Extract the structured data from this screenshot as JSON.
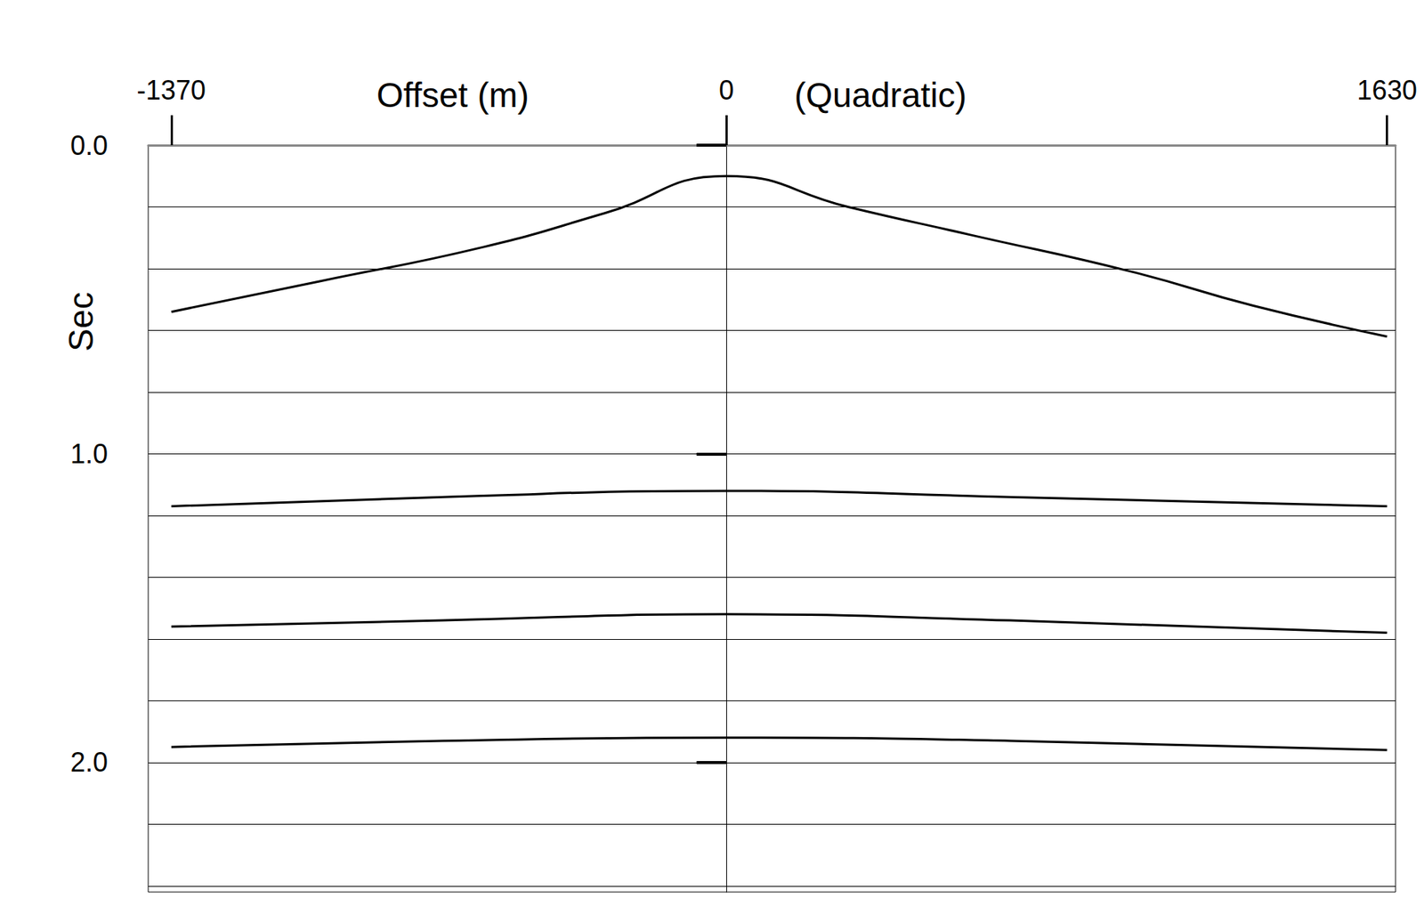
{
  "chart_data": {
    "type": "line",
    "xlabel": "Offset (m)",
    "ylabel": "Sec",
    "annotations": [
      "(Quadratic)"
    ],
    "xlim": [
      -1427,
      1651
    ],
    "xticks": [
      -1370,
      0,
      1630
    ],
    "ylim": [
      0,
      2.42
    ],
    "yticks": [
      {
        "value": 0,
        "label": "0.0"
      },
      {
        "value": 1,
        "label": "1.0"
      },
      {
        "value": 2,
        "label": "2.0"
      }
    ],
    "grid": true,
    "series": [
      {
        "color": "#000000",
        "x": [
          -1370,
          -1000,
          -600,
          -300,
          0,
          300,
          600,
          1000,
          1300,
          1630
        ],
        "values": [
          0.54,
          0.44,
          0.33,
          0.22,
          0.1,
          0.2,
          0.29,
          0.41,
          0.52,
          0.62
        ]
      },
      {
        "color": "#000000",
        "x": [
          -1370,
          -700,
          0,
          700,
          1630
        ],
        "values": [
          1.17,
          1.14,
          1.12,
          1.14,
          1.17
        ]
      },
      {
        "color": "#000000",
        "x": [
          -1370,
          -700,
          0,
          700,
          1630
        ],
        "values": [
          1.56,
          1.54,
          1.52,
          1.54,
          1.58
        ]
      },
      {
        "color": "#000000",
        "x": [
          -1370,
          -700,
          0,
          700,
          1630
        ],
        "values": [
          1.95,
          1.93,
          1.92,
          1.93,
          1.96
        ]
      }
    ]
  }
}
